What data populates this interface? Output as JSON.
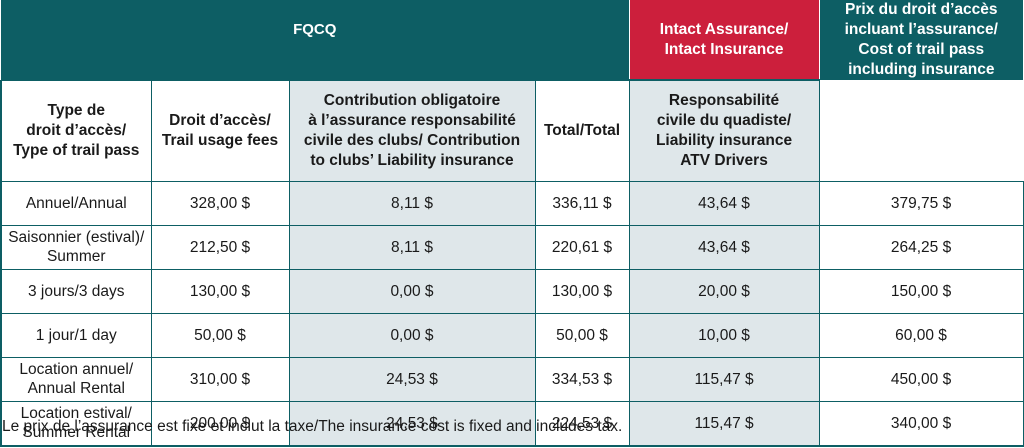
{
  "header": {
    "fqcq": "FQCQ",
    "intact_line1": "Intact Assurance/",
    "intact_line2": "Intact Insurance",
    "prix_line1": "Prix du droit d’accès",
    "prix_line2": "incluant l’assurance/",
    "prix_line3": "Cost of trail pass",
    "prix_line4": "including insurance"
  },
  "columns": {
    "type_line1": "Type de",
    "type_line2": "droit d’accès/",
    "type_line3": "Type of trail pass",
    "droit_line1": "Droit d’accès/",
    "droit_line2": "Trail usage fees",
    "contrib_line1": "Contribution obligatoire",
    "contrib_line2": "à l’assurance responsabilité",
    "contrib_line3": "civile des clubs/ Contribution",
    "contrib_line4": "to clubs’ Liability insurance",
    "total": "Total/Total",
    "resp_line1": "Responsabilité",
    "resp_line2": "civile du quadiste/",
    "resp_line3": "Liability insurance",
    "resp_line4": "ATV Drivers"
  },
  "rows": [
    {
      "type_l1": "Annuel/Annual",
      "type_l2": "",
      "droit": "328,00 $",
      "contrib": "8,11 $",
      "total": "336,11 $",
      "resp": "43,64 $",
      "prix": "379,75 $"
    },
    {
      "type_l1": "Saisonnier (estival)/",
      "type_l2": "Summer",
      "droit": "212,50 $",
      "contrib": "8,11 $",
      "total": "220,61 $",
      "resp": "43,64 $",
      "prix": "264,25 $"
    },
    {
      "type_l1": "3 jours/3 days",
      "type_l2": "",
      "droit": "130,00 $",
      "contrib": "0,00 $",
      "total": "130,00 $",
      "resp": "20,00 $",
      "prix": "150,00 $"
    },
    {
      "type_l1": "1 jour/1 day",
      "type_l2": "",
      "droit": "50,00 $",
      "contrib": "0,00 $",
      "total": "50,00 $",
      "resp": "10,00 $",
      "prix": "60,00 $"
    },
    {
      "type_l1": "Location annuel/",
      "type_l2": "Annual Rental",
      "droit": "310,00 $",
      "contrib": "24,53 $",
      "total": "334,53 $",
      "resp": "115,47 $",
      "prix": "450,00 $"
    },
    {
      "type_l1": "Location estival/",
      "type_l2": "Summer Rental",
      "droit": "200,00 $",
      "contrib": "24,53 $",
      "total": "224,53 $",
      "resp": "115,47 $",
      "prix": "340,00 $"
    }
  ],
  "footnote": "Le prix de l’assurance est fixe et inclut la taxe/The insurance cost is fixed and includes tax.",
  "colors": {
    "teal": "#0d5e64",
    "red": "#cc1f3c",
    "shade": "#dfe7ea"
  }
}
